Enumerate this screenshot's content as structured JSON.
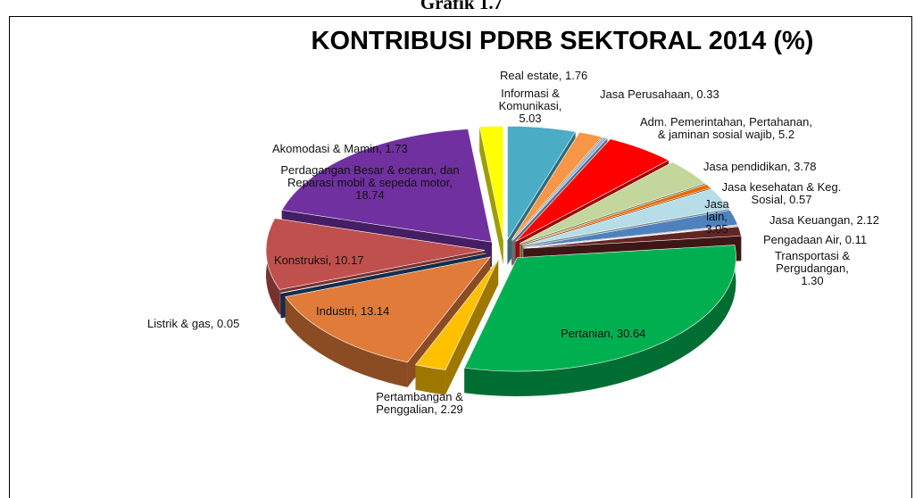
{
  "caption": "Grafik 1.7",
  "chart_data": {
    "type": "pie",
    "title": "KONTRIBUSI PDRB SEKTORAL 2014 (%)",
    "values": [
      5.03,
      1.76,
      0.33,
      5.2,
      3.78,
      0.57,
      3.05,
      2.12,
      0.11,
      1.3,
      30.64,
      2.29,
      13.14,
      0.05,
      10.17,
      18.74,
      1.73
    ],
    "value_labels": [
      "Informasi & Komunikasi, 5.03",
      "Real estate, 1.76",
      "Jasa Perusahaan, 0.33",
      "Adm. Pemerintahan, Pertahanan, & jaminan sosial wajib, 5.2",
      "Jasa pendidikan, 3.78",
      "Jasa kesehatan & Keg. Sosial, 0.57",
      "Jasa lain, 3.05",
      "Jasa Keuangan, 2.12",
      "Pengadaan Air, 0.11",
      "Transportasi & Pergudangan, 1.30",
      "Pertanian, 30.64",
      "Pertambangan & Penggalian, 2.29",
      "Industri, 13.14",
      "Listrik & gas, 0.05",
      "Konstruksi, 10.17",
      "Perdagangan Besar & eceran, dan Reparasi mobil & sepeda motor, 18.74",
      "Akomodasi & Mamin, 1.73"
    ],
    "colors": [
      "#4bacc6",
      "#f79646",
      "#95b3d7",
      "#ff0000",
      "#c3d69b",
      "#e46c0a",
      "#b7dde8",
      "#4f81bd",
      "#c0504d",
      "#632523",
      "#00b050",
      "#ffc000",
      "#e07b39",
      "#1f497d",
      "#c0504d",
      "#7030a0",
      "#ffff00"
    ]
  }
}
